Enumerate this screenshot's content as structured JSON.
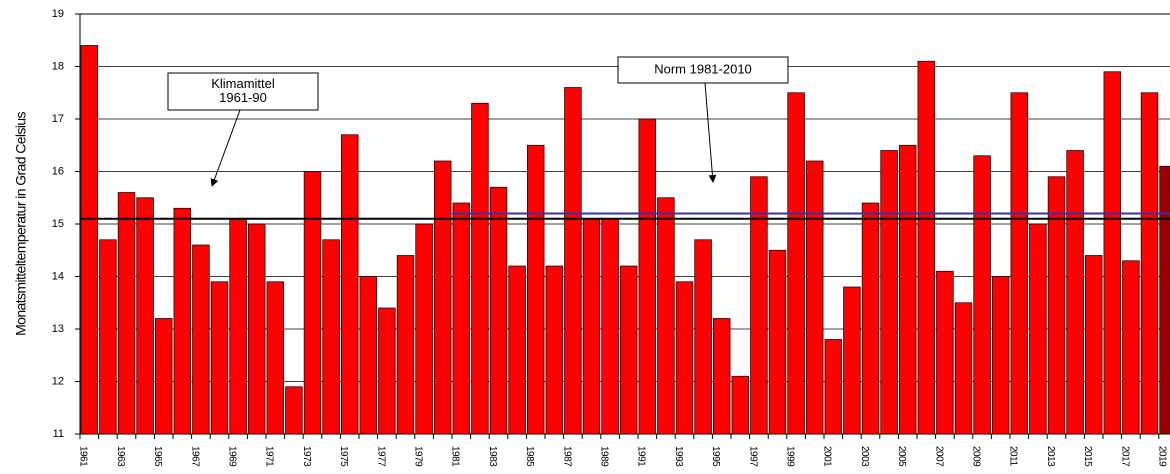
{
  "chart_data": {
    "type": "bar",
    "y_label": "Monatsmitteltemperatur in Grad Celsius",
    "categories": [
      "1961",
      null,
      "1963",
      null,
      "1965",
      null,
      "1967",
      null,
      "1969",
      null,
      "1971",
      null,
      "1973",
      null,
      "1975",
      null,
      "1977",
      null,
      "1979",
      null,
      "1981",
      null,
      "1983",
      null,
      "1985",
      null,
      "1987",
      null,
      "1989",
      null,
      "1991",
      null,
      "1993",
      null,
      "1995",
      null,
      "1997",
      null,
      "1999",
      null,
      "2001",
      null,
      "2003",
      null,
      "2005",
      null,
      "2007",
      null,
      "2009",
      null,
      "2011",
      null,
      "2013",
      null,
      "2015",
      null,
      "2017",
      null,
      "2019"
    ],
    "values": [
      18.4,
      14.7,
      15.6,
      15.5,
      13.2,
      15.3,
      14.6,
      13.9,
      15.1,
      15.0,
      13.9,
      11.9,
      16.0,
      14.7,
      16.7,
      14.0,
      13.4,
      14.4,
      15.0,
      16.2,
      15.4,
      17.3,
      15.7,
      14.2,
      16.5,
      14.2,
      17.6,
      15.1,
      15.1,
      14.2,
      17.0,
      15.5,
      13.9,
      14.7,
      13.2,
      12.1,
      15.9,
      14.5,
      17.5,
      16.2,
      12.8,
      13.8,
      15.4,
      16.4,
      16.5,
      18.1,
      14.1,
      13.5,
      16.3,
      14.0,
      17.5,
      15.0,
      15.9,
      16.4,
      14.4,
      17.9,
      14.3,
      17.5,
      16.1
    ],
    "colors": [
      "#ff0000",
      "#ff0000",
      "#ff0000",
      "#ff0000",
      "#ff0000",
      "#ff0000",
      "#ff0000",
      "#ff0000",
      "#ff0000",
      "#ff0000",
      "#ff0000",
      "#ff0000",
      "#ff0000",
      "#ff0000",
      "#ff0000",
      "#ff0000",
      "#ff0000",
      "#ff0000",
      "#ff0000",
      "#ff0000",
      "#ff0000",
      "#ff0000",
      "#ff0000",
      "#ff0000",
      "#ff0000",
      "#ff0000",
      "#ff0000",
      "#ff0000",
      "#ff0000",
      "#ff0000",
      "#ff0000",
      "#ff0000",
      "#ff0000",
      "#ff0000",
      "#ff0000",
      "#ff0000",
      "#ff0000",
      "#ff0000",
      "#ff0000",
      "#ff0000",
      "#ff0000",
      "#ff0000",
      "#ff0000",
      "#ff0000",
      "#ff0000",
      "#ff0000",
      "#ff0000",
      "#ff0000",
      "#ff0000",
      "#ff0000",
      "#ff0000",
      "#ff0000",
      "#ff0000",
      "#ff0000",
      "#ff0000",
      "#ff0000",
      "#ff0000",
      "#ff0000",
      "#990000"
    ],
    "ylim": [
      11,
      19
    ],
    "yticks": [
      11,
      12,
      13,
      14,
      15,
      16,
      17,
      18,
      19
    ],
    "grid": true,
    "reference_lines": [
      {
        "label_lines": [
          "Klimamittel",
          "1961-90"
        ],
        "value": 15.1,
        "from": "1961",
        "color": "#000000"
      },
      {
        "label_lines": [
          "Norm 1981-2010"
        ],
        "value": 15.2,
        "from": "1981",
        "color": "#3333aa"
      }
    ]
  }
}
